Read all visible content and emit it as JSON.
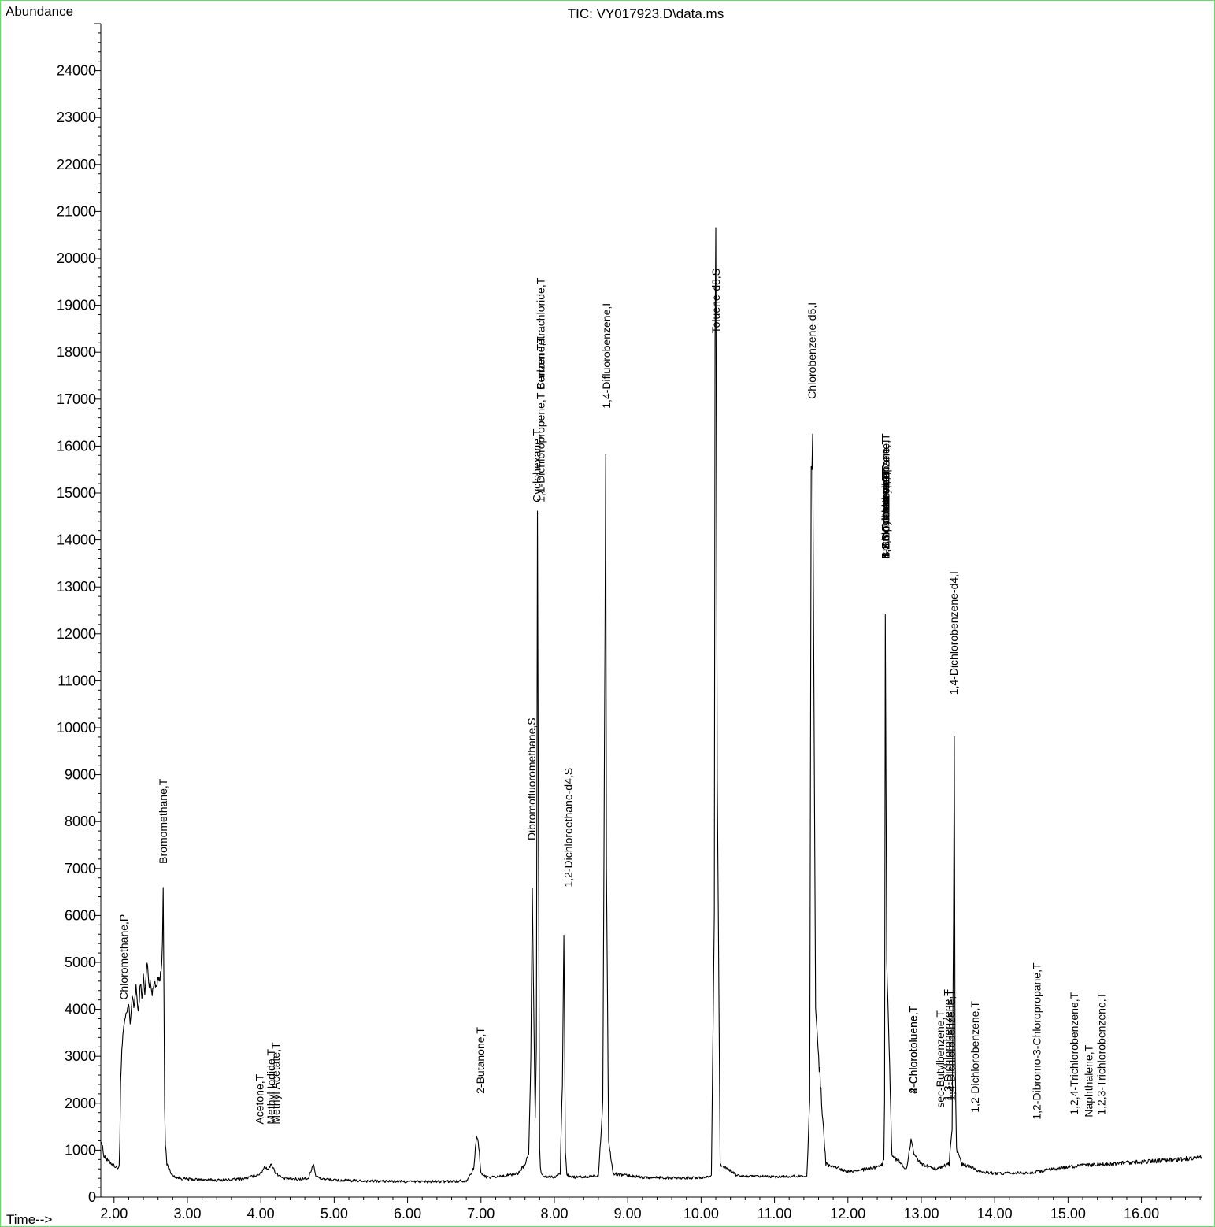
{
  "chart_data": {
    "type": "line",
    "title": "TIC: VY017923.D\\data.ms",
    "xlabel": "Time-->",
    "ylabel": "Abundance",
    "xlim": [
      1.82,
      16.82
    ],
    "ylim": [
      0,
      25000
    ],
    "xticks": [
      {
        "value": 2.0,
        "label": "2.00"
      },
      {
        "value": 3.0,
        "label": "3.00"
      },
      {
        "value": 4.0,
        "label": "4.00"
      },
      {
        "value": 5.0,
        "label": "5.00"
      },
      {
        "value": 6.0,
        "label": "6.00"
      },
      {
        "value": 7.0,
        "label": "7.00"
      },
      {
        "value": 8.0,
        "label": "8.00"
      },
      {
        "value": 9.0,
        "label": "9.00"
      },
      {
        "value": 10.0,
        "label": "10.00"
      },
      {
        "value": 11.0,
        "label": "11.00"
      },
      {
        "value": 12.0,
        "label": "12.00"
      },
      {
        "value": 13.0,
        "label": "13.00"
      },
      {
        "value": 14.0,
        "label": "14.00"
      },
      {
        "value": 15.0,
        "label": "15.00"
      },
      {
        "value": 16.0,
        "label": "16.00"
      }
    ],
    "yticks": [
      {
        "value": 0,
        "label": "0"
      },
      {
        "value": 1000,
        "label": "1000"
      },
      {
        "value": 2000,
        "label": "2000"
      },
      {
        "value": 3000,
        "label": "3000"
      },
      {
        "value": 4000,
        "label": "4000"
      },
      {
        "value": 5000,
        "label": "5000"
      },
      {
        "value": 6000,
        "label": "6000"
      },
      {
        "value": 7000,
        "label": "7000"
      },
      {
        "value": 8000,
        "label": "8000"
      },
      {
        "value": 9000,
        "label": "9000"
      },
      {
        "value": 10000,
        "label": "10000"
      },
      {
        "value": 11000,
        "label": "11000"
      },
      {
        "value": 12000,
        "label": "12000"
      },
      {
        "value": 13000,
        "label": "13000"
      },
      {
        "value": 14000,
        "label": "14000"
      },
      {
        "value": 15000,
        "label": "15000"
      },
      {
        "value": 16000,
        "label": "16000"
      },
      {
        "value": 17000,
        "label": "17000"
      },
      {
        "value": 18000,
        "label": "18000"
      },
      {
        "value": 19000,
        "label": "19000"
      },
      {
        "value": 20000,
        "label": "20000"
      },
      {
        "value": 21000,
        "label": "21000"
      },
      {
        "value": 22000,
        "label": "22000"
      },
      {
        "value": 23000,
        "label": "23000"
      },
      {
        "value": 24000,
        "label": "24000"
      }
    ],
    "grid": false,
    "series": [
      {
        "color": "#000000",
        "x": [
          1.82,
          1.86,
          1.9,
          1.94,
          1.98,
          2.02,
          2.05,
          2.07,
          2.08,
          2.09,
          2.1,
          2.12,
          2.14,
          2.17,
          2.2,
          2.22,
          2.25,
          2.27,
          2.3,
          2.33,
          2.36,
          2.38,
          2.4,
          2.42,
          2.45,
          2.48,
          2.5,
          2.52,
          2.55,
          2.58,
          2.6,
          2.62,
          2.64,
          2.65,
          2.66,
          2.67,
          2.68,
          2.69,
          2.7,
          2.72,
          2.75,
          2.8,
          2.9,
          3.0,
          3.2,
          3.4,
          3.6,
          3.8,
          3.9,
          4.0,
          4.05,
          4.1,
          4.15,
          4.2,
          4.3,
          4.5,
          4.65,
          4.7,
          4.72,
          4.75,
          4.8,
          5.0,
          5.5,
          6.0,
          6.5,
          6.8,
          6.9,
          6.94,
          6.97,
          7.0,
          7.04,
          7.1,
          7.3,
          7.5,
          7.6,
          7.65,
          7.68,
          7.7,
          7.72,
          7.74,
          7.755,
          7.77,
          7.785,
          7.8,
          7.81,
          7.82,
          7.84,
          7.9,
          8.0,
          8.08,
          8.11,
          8.13,
          8.14,
          8.15,
          8.17,
          8.2,
          8.4,
          8.6,
          8.66,
          8.69,
          8.7,
          8.71,
          8.74,
          8.8,
          9.2,
          9.6,
          10.0,
          10.14,
          10.18,
          10.19,
          10.2,
          10.22,
          10.26,
          10.5,
          11.0,
          11.44,
          11.48,
          11.5,
          11.52,
          11.56,
          11.7,
          12.0,
          12.3,
          12.4,
          12.47,
          12.49,
          12.5,
          12.51,
          12.53,
          12.6,
          12.8,
          12.86,
          12.9,
          13.0,
          13.2,
          13.38,
          13.42,
          13.44,
          13.45,
          13.46,
          13.48,
          13.55,
          13.65,
          13.8,
          14.0,
          14.5,
          15.0,
          15.5,
          16.0,
          16.5,
          16.82
        ],
        "y": [
          1250,
          900,
          800,
          750,
          700,
          650,
          620,
          640,
          1200,
          2500,
          3000,
          3400,
          3700,
          3900,
          4100,
          3700,
          4300,
          4000,
          4500,
          3900,
          4600,
          4200,
          4700,
          4300,
          5000,
          4500,
          4600,
          4300,
          4600,
          4500,
          4700,
          4600,
          4800,
          5000,
          5500,
          6700,
          4500,
          2000,
          1100,
          700,
          600,
          450,
          400,
          380,
          370,
          360,
          370,
          400,
          450,
          500,
          650,
          600,
          700,
          520,
          400,
          380,
          400,
          650,
          700,
          450,
          400,
          360,
          340,
          330,
          330,
          350,
          600,
          1300,
          1100,
          500,
          450,
          420,
          450,
          500,
          700,
          900,
          3000,
          6500,
          4000,
          1600,
          3000,
          14500,
          7000,
          1000,
          600,
          500,
          450,
          430,
          420,
          500,
          2500,
          5600,
          3500,
          1000,
          500,
          430,
          420,
          460,
          2000,
          12000,
          15800,
          7000,
          1200,
          500,
          420,
          410,
          410,
          450,
          6000,
          18500,
          20500,
          9000,
          700,
          450,
          430,
          450,
          2000,
          15500,
          16000,
          4000,
          700,
          550,
          600,
          650,
          700,
          800,
          2000,
          12500,
          5000,
          900,
          600,
          1200,
          900,
          700,
          600,
          700,
          1500,
          6000,
          9700,
          3000,
          1000,
          700,
          650,
          550,
          500,
          520,
          650,
          700,
          750,
          800,
          850
        ]
      }
    ],
    "annotations": [
      {
        "x": 2.13,
        "y": 4200,
        "text": "Chloromethane,P"
      },
      {
        "x": 2.67,
        "y": 7100,
        "text": "Bromomethane,T"
      },
      {
        "x": 3.98,
        "y": 1550,
        "text": "Acetone,T"
      },
      {
        "x": 4.14,
        "y": 1550,
        "text": "Methyl Iodide,T"
      },
      {
        "x": 4.2,
        "y": 1550,
        "text": "Methyl Acetate,T"
      },
      {
        "x": 6.99,
        "y": 2200,
        "text": "2-Butanone,T"
      },
      {
        "x": 7.69,
        "y": 7600,
        "text": "Dibromofluoromethane,S"
      },
      {
        "x": 7.76,
        "y": 14800,
        "text": "Cyclohexane,T"
      },
      {
        "x": 7.81,
        "y": 14800,
        "text": "1,1-Dichloropropene,T"
      },
      {
        "x": 7.81,
        "y": 17200,
        "text": "Benzene,T"
      },
      {
        "x": 7.81,
        "y": 17200,
        "text": "Carbon Tetrachloride,T"
      },
      {
        "x": 8.19,
        "y": 6600,
        "text": "1,2-Dichloroethane-d4,S"
      },
      {
        "x": 8.71,
        "y": 16800,
        "text": "1,4-Difluorobenzene,I"
      },
      {
        "x": 10.2,
        "y": 18400,
        "text": "Toluene-d8,S"
      },
      {
        "x": 11.51,
        "y": 17000,
        "text": "Chlorobenzene-d5,I"
      },
      {
        "x": 12.51,
        "y": 13600,
        "text": "1,3,5-Trimethylbenzene,T"
      },
      {
        "x": 12.51,
        "y": 13600,
        "text": "1,2,3-Trichloropropane,T"
      },
      {
        "x": 12.51,
        "y": 13600,
        "text": "n-Propylbenzene,T"
      },
      {
        "x": 12.51,
        "y": 13600,
        "text": "Bromobenzene,T"
      },
      {
        "x": 12.51,
        "y": 13600,
        "text": "4-Chlorotoluene,T"
      },
      {
        "x": 13.44,
        "y": 10700,
        "text": "1,4-Dichlorobenzene-d4,I"
      },
      {
        "x": 12.89,
        "y": 2200,
        "text": "2-Chlorotoluene,T"
      },
      {
        "x": 12.89,
        "y": 2200,
        "text": "4-Chlorotoluene,T"
      },
      {
        "x": 13.26,
        "y": 1900,
        "text": "sec-Butylbenzene,T"
      },
      {
        "x": 13.36,
        "y": 2050,
        "text": "1,3-Dichlorobenzene,T"
      },
      {
        "x": 13.4,
        "y": 2050,
        "text": "1,4-Dichlorobenzene,T"
      },
      {
        "x": 13.73,
        "y": 1800,
        "text": "1,2-Dichlorobenzene,T"
      },
      {
        "x": 14.57,
        "y": 1650,
        "text": "1,2-Dibromo-3-Chloropropane,T"
      },
      {
        "x": 15.08,
        "y": 1750,
        "text": "1,2,4-Trichlorobenzene,T"
      },
      {
        "x": 15.28,
        "y": 1700,
        "text": "Naphthalene,T"
      },
      {
        "x": 15.45,
        "y": 1750,
        "text": "1,2,3-Trichlorobenzene,T"
      }
    ]
  }
}
